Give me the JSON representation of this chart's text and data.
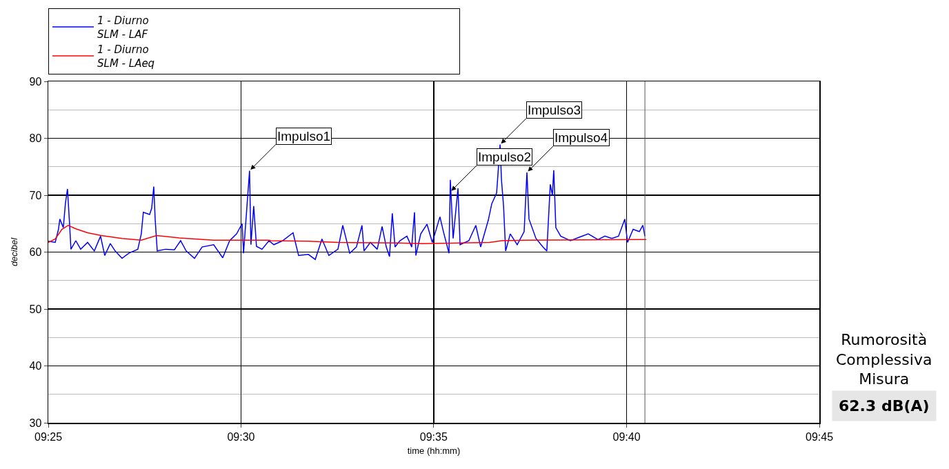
{
  "chart_data": {
    "type": "line",
    "xlabel": "time (hh:mm)",
    "ylabel": "decibel",
    "xlim": [
      9.4167,
      9.75
    ],
    "xticks": [
      {
        "value": 9.4167,
        "label": "09:25"
      },
      {
        "value": 9.5,
        "label": "09:30"
      },
      {
        "value": 9.5833,
        "label": "09:35"
      },
      {
        "value": 9.6667,
        "label": "09:40"
      },
      {
        "value": 9.75,
        "label": "09:45"
      }
    ],
    "ylim": [
      30,
      90
    ],
    "yticks": [
      30,
      {
        "value": 35,
        "label": null
      },
      40,
      {
        "value": 45,
        "label": null
      },
      50,
      {
        "value": 55,
        "label": null
      },
      60,
      {
        "value": 65,
        "label": null
      },
      70,
      {
        "value": 75,
        "label": null
      },
      80,
      {
        "value": 85,
        "label": null
      },
      90
    ],
    "grid": true,
    "legend": "top",
    "marker": "none",
    "line_style": "solid",
    "series": [
      {
        "name": "1 - Diurno\nSLM - LAF",
        "color": "#0000ff",
        "x": [
          9.4167,
          9.4197,
          9.4211,
          9.4217,
          9.4232,
          9.4241,
          9.425,
          9.4259,
          9.4265,
          9.4286,
          9.4307,
          9.4337,
          9.4366,
          9.4393,
          9.4411,
          9.4435,
          9.4456,
          9.4486,
          9.4515,
          9.4554,
          9.4569,
          9.4578,
          9.4605,
          9.4614,
          9.4623,
          9.4629,
          9.4638,
          9.4674,
          9.4712,
          9.4739,
          9.4763,
          9.4799,
          9.4832,
          9.4882,
          9.4921,
          9.4951,
          9.4981,
          9.5005,
          9.5011,
          9.5037,
          9.5043,
          9.5055,
          9.5067,
          9.5091,
          9.5121,
          9.5142,
          9.518,
          9.5225,
          9.5249,
          9.5291,
          9.5321,
          9.535,
          9.538,
          9.5419,
          9.544,
          9.547,
          9.5499,
          9.5523,
          9.5532,
          9.5559,
          9.5589,
          9.561,
          9.5628,
          9.5642,
          9.5654,
          9.5666,
          9.5687,
          9.5717,
          9.5738,
          9.575,
          9.5756,
          9.5777,
          9.5804,
          9.5827,
          9.586,
          9.5875,
          9.5899,
          9.5905,
          9.5917,
          9.5938,
          9.5947,
          9.5985,
          9.6015,
          9.6036,
          9.6069,
          9.6084,
          9.6105,
          9.612,
          9.6126,
          9.6135,
          9.6144,
          9.6164,
          9.6194,
          9.6224,
          9.6236,
          9.6245,
          9.6275,
          9.6305,
          9.6322,
          9.6337,
          9.6346,
          9.6352,
          9.6361,
          9.6382,
          9.6424,
          9.6462,
          9.6501,
          9.6543,
          9.6573,
          9.6603,
          9.6632,
          9.6659,
          9.6671,
          9.6695,
          9.6722,
          9.6737,
          9.6746
        ],
        "values": [
          61.9,
          61.7,
          64,
          65.8,
          64.3,
          68.5,
          71.1,
          65,
          60.5,
          62,
          60.5,
          61.7,
          60.2,
          62.8,
          59.4,
          61.5,
          60.2,
          58.9,
          59.8,
          60.5,
          63.2,
          67,
          66.6,
          67.7,
          71.5,
          65.8,
          60.2,
          60.5,
          60.4,
          62,
          60.2,
          58.9,
          60.9,
          61.3,
          59,
          62,
          63.2,
          65,
          59.8,
          74.3,
          61.3,
          68.1,
          61,
          60.5,
          62,
          61.3,
          62,
          63.4,
          59.4,
          59.6,
          58.7,
          62.3,
          59.4,
          60.5,
          64.7,
          59.8,
          60.9,
          64.7,
          60.2,
          61.7,
          60.5,
          64.5,
          60.9,
          59.2,
          66.8,
          60.9,
          62,
          62.8,
          60.9,
          67,
          59.4,
          63.2,
          64.9,
          61.7,
          66.2,
          63.6,
          59.8,
          72.7,
          62.4,
          71.2,
          61.3,
          62,
          64.7,
          60.9,
          65.6,
          68.5,
          70.4,
          78.9,
          72.7,
          68.1,
          60.2,
          63.2,
          61.3,
          63.6,
          74,
          65.8,
          62.4,
          60.9,
          60.2,
          71.9,
          70,
          74.4,
          64.3,
          62.8,
          62,
          62.6,
          63.2,
          62.2,
          62.8,
          62.4,
          62.8,
          65.8,
          61.7,
          64,
          63.6,
          64.7,
          62.8
        ]
      },
      {
        "name": "1 - Diurno\nSLM - LAeq",
        "color": "#ff0000",
        "x": [
          9.4167,
          9.4197,
          9.4226,
          9.4253,
          9.4286,
          9.4337,
          9.4396,
          9.4486,
          9.4569,
          9.4635,
          9.4733,
          9.4882,
          9.5121,
          9.513,
          9.5291,
          9.5419,
          9.5678,
          9.5786,
          9.6075,
          9.6126,
          9.6233,
          9.6752
        ],
        "values": [
          61.7,
          62.3,
          64,
          64.7,
          64.1,
          63.4,
          62.9,
          62.4,
          62.1,
          62.9,
          62.5,
          62.1,
          62.1,
          62,
          61.9,
          61.7,
          61.6,
          61.5,
          61.7,
          62,
          62.1,
          62.2
        ]
      }
    ],
    "ref_lines": [
      {
        "axis": "x",
        "value": 9.6746,
        "color": "#555555"
      }
    ],
    "annotations": [
      {
        "text": "Impulso1",
        "x": 9.5037,
        "y": 74.3
      },
      {
        "text": "Impulso2",
        "x": 9.5905,
        "y": 70.6
      },
      {
        "text": "Impulso3",
        "x": 9.612,
        "y": 78.9
      },
      {
        "text": "Impulso4",
        "x": 9.6236,
        "y": 74
      },
      "Rumorosità Complessiva Misura",
      "62.3 dB(A)"
    ]
  }
}
